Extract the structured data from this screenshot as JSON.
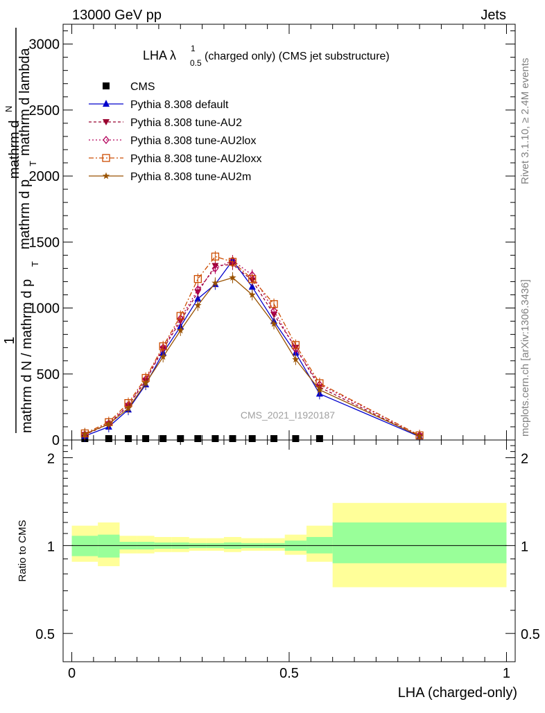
{
  "header": {
    "left": "13000 GeV pp",
    "right": "Jets"
  },
  "side_labels": {
    "rivet": "Rivet 3.1.10, ≥ 2.4M events",
    "mcplots": "mcplots.cern.ch [arXiv:1306.3436]"
  },
  "main_plot": {
    "title_main": "LHA λ",
    "title_sup": "1",
    "title_sub": "0.5",
    "title_rest": " (charged only) (CMS jet substructure)",
    "ylabel_top_a": "mathrm d",
    "ylabel_top_b": "N",
    "ylabel_top_c": "mathrm d p",
    "ylabel_top_d": "T",
    "ylabel_top_e": "mathrm d lambda",
    "ylabel_one": "1",
    "ylabel_bottom_a": "mathrm d N / mathrm d p",
    "ylabel_bottom_b": "T",
    "watermark": "CMS_2021_I1920187",
    "yticks": [
      "0",
      "500",
      "1000",
      "1500",
      "2000",
      "2500",
      "3000"
    ]
  },
  "ratio_plot": {
    "ylabel": "Ratio to CMS",
    "yticks": [
      "0.5",
      "1",
      "2"
    ],
    "xlabel": "LHA (charged-only)",
    "xticks": [
      "0",
      "0.5",
      "1"
    ]
  },
  "legend": [
    {
      "label": "CMS",
      "color": "#000000",
      "marker": "square",
      "dash": ""
    },
    {
      "label": "Pythia 8.308 default",
      "color": "#0000cc",
      "marker": "triangle-up",
      "dash": ""
    },
    {
      "label": "Pythia 8.308 tune-AU2",
      "color": "#99002e",
      "marker": "triangle-down",
      "dash": "4,3"
    },
    {
      "label": "Pythia 8.308 tune-AU2lox",
      "color": "#b3005a",
      "marker": "diamond-open",
      "dash": "2,3"
    },
    {
      "label": "Pythia 8.308 tune-AU2loxx",
      "color": "#cc4c00",
      "marker": "square-open",
      "dash": "7,3,2,3"
    },
    {
      "label": "Pythia 8.308 tune-AU2m",
      "color": "#995200",
      "marker": "star",
      "dash": ""
    }
  ],
  "chart_data": {
    "type": "line",
    "title": "LHA λ^1_0.5 (charged only) (CMS jet substructure)",
    "xlabel": "LHA (charged-only)",
    "ylabel": "1/(mathrm d N / mathrm d p_T) mathrm d^N/(mathrm d p_T mathrm d lambda)",
    "xlim": [
      -0.02,
      1.02
    ],
    "ylim": [
      0,
      3150
    ],
    "ratio_ylim": [
      0.4,
      2.3
    ],
    "x": [
      0.03,
      0.085,
      0.13,
      0.17,
      0.21,
      0.25,
      0.29,
      0.33,
      0.37,
      0.415,
      0.465,
      0.515,
      0.57,
      0.8
    ],
    "series": [
      {
        "name": "CMS",
        "values": [
          0,
          0,
          0,
          0,
          0,
          0,
          0,
          0,
          0,
          0,
          0,
          0,
          0,
          null
        ]
      },
      {
        "name": "Pythia 8.308 default",
        "values": [
          30,
          100,
          230,
          420,
          660,
          860,
          1070,
          1180,
          1360,
          1160,
          900,
          660,
          350,
          25
        ]
      },
      {
        "name": "Pythia 8.308 tune-AU2",
        "values": [
          40,
          120,
          260,
          450,
          690,
          900,
          1120,
          1320,
          1330,
          1210,
          950,
          700,
          400,
          30
        ]
      },
      {
        "name": "Pythia 8.308 tune-AU2lox",
        "values": [
          42,
          125,
          265,
          460,
          700,
          920,
          1140,
          1300,
          1360,
          1250,
          980,
          690,
          420,
          35
        ]
      },
      {
        "name": "Pythia 8.308 tune-AU2loxx",
        "values": [
          50,
          135,
          280,
          470,
          710,
          940,
          1220,
          1390,
          1350,
          1220,
          1030,
          720,
          430,
          35
        ]
      },
      {
        "name": "Pythia 8.308 tune-AU2m",
        "values": [
          45,
          120,
          240,
          430,
          630,
          830,
          1020,
          1190,
          1230,
          1100,
          880,
          610,
          380,
          30
        ]
      }
    ],
    "ratio_bands": {
      "edges": [
        0,
        0.06,
        0.11,
        0.15,
        0.19,
        0.23,
        0.27,
        0.31,
        0.35,
        0.39,
        0.44,
        0.49,
        0.54,
        0.6,
        1.0
      ],
      "yellow": [
        [
          0.88,
          1.17
        ],
        [
          0.85,
          1.2
        ],
        [
          0.94,
          1.08
        ],
        [
          0.94,
          1.08
        ],
        [
          0.95,
          1.07
        ],
        [
          0.95,
          1.07
        ],
        [
          0.96,
          1.06
        ],
        [
          0.96,
          1.06
        ],
        [
          0.95,
          1.07
        ],
        [
          0.96,
          1.06
        ],
        [
          0.96,
          1.06
        ],
        [
          0.93,
          1.09
        ],
        [
          0.88,
          1.17
        ],
        [
          0.72,
          1.4
        ]
      ],
      "green": [
        [
          0.92,
          1.08
        ],
        [
          0.91,
          1.09
        ],
        [
          0.97,
          1.03
        ],
        [
          0.97,
          1.03
        ],
        [
          0.975,
          1.025
        ],
        [
          0.975,
          1.025
        ],
        [
          0.98,
          1.02
        ],
        [
          0.98,
          1.02
        ],
        [
          0.975,
          1.025
        ],
        [
          0.98,
          1.02
        ],
        [
          0.98,
          1.02
        ],
        [
          0.96,
          1.04
        ],
        [
          0.94,
          1.07
        ],
        [
          0.87,
          1.2
        ]
      ]
    }
  }
}
